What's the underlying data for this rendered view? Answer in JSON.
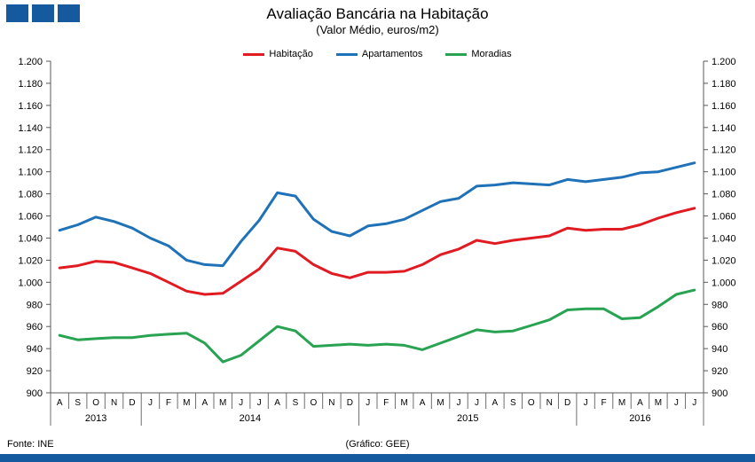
{
  "header": {
    "title": "Avaliação Bancária na Habitação",
    "subtitle": "(Valor Médio, euros/m2)"
  },
  "footer": {
    "source": "Fonte: INE",
    "credit": "(Gráfico: GEE)"
  },
  "colors": {
    "logo_blue": "#15599E",
    "bottom_bar_blue": "#15599E",
    "axis": "#595959",
    "separator": "#6e6e6e"
  },
  "chart_data": {
    "type": "line",
    "title": "Avaliação Bancária na Habitação",
    "subtitle": "(Valor Médio, euros/m2)",
    "ylabel": "euros/m2",
    "ylim": [
      900,
      1200
    ],
    "ytick_step": 20,
    "ytick_labels": [
      "1.200",
      "1.180",
      "1.160",
      "1.140",
      "1.120",
      "1.100",
      "1.080",
      "1.060",
      "1.040",
      "1.020",
      "1.000",
      "980",
      "960",
      "940",
      "920",
      "900"
    ],
    "grid": false,
    "legend_position": "top",
    "x_months": [
      "A",
      "S",
      "O",
      "N",
      "D",
      "J",
      "F",
      "M",
      "A",
      "M",
      "J",
      "J",
      "A",
      "S",
      "O",
      "N",
      "D",
      "J",
      "F",
      "M",
      "A",
      "M",
      "J",
      "J",
      "A",
      "S",
      "O",
      "N",
      "D",
      "J",
      "F",
      "M",
      "A",
      "M",
      "J",
      "J"
    ],
    "year_groups": [
      {
        "label": "2013",
        "count": 5
      },
      {
        "label": "2014",
        "count": 12
      },
      {
        "label": "2015",
        "count": 12
      },
      {
        "label": "2016",
        "count": 7
      }
    ],
    "series": [
      {
        "name": "Habitação",
        "color": "#E01B22",
        "values": [
          1013,
          1015,
          1019,
          1018,
          1013,
          1008,
          1000,
          992,
          989,
          990,
          1001,
          1012,
          1031,
          1028,
          1016,
          1008,
          1004,
          1009,
          1009,
          1010,
          1016,
          1025,
          1030,
          1038,
          1035,
          1038,
          1040,
          1042,
          1049,
          1047,
          1048,
          1048,
          1052,
          1058,
          1063,
          1067
        ]
      },
      {
        "name": "Apartamentos",
        "color": "#1F72B7",
        "values": [
          1047,
          1052,
          1059,
          1055,
          1049,
          1040,
          1033,
          1020,
          1016,
          1015,
          1037,
          1056,
          1081,
          1078,
          1057,
          1046,
          1042,
          1051,
          1053,
          1057,
          1065,
          1073,
          1076,
          1087,
          1088,
          1090,
          1089,
          1088,
          1093,
          1091,
          1093,
          1095,
          1099,
          1100,
          1104,
          1108
        ]
      },
      {
        "name": "Moradias",
        "color": "#28A351",
        "values": [
          952,
          948,
          949,
          950,
          950,
          952,
          953,
          954,
          945,
          928,
          934,
          947,
          960,
          956,
          942,
          943,
          944,
          943,
          944,
          943,
          939,
          945,
          951,
          957,
          955,
          956,
          961,
          966,
          975,
          976,
          976,
          967,
          968,
          978,
          989,
          993
        ]
      }
    ]
  }
}
